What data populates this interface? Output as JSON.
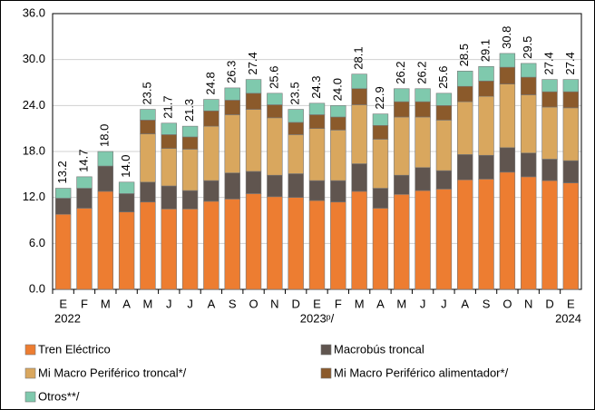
{
  "chart_data": {
    "type": "stacked-bar",
    "categories": [
      "E",
      "F",
      "M",
      "A",
      "M",
      "J",
      "J",
      "A",
      "S",
      "O",
      "N",
      "D",
      "E",
      "F",
      "M",
      "A",
      "M",
      "J",
      "J",
      "A",
      "S",
      "O",
      "N",
      "D",
      "E"
    ],
    "year_labels": [
      "2022",
      null,
      null,
      null,
      null,
      null,
      null,
      null,
      null,
      null,
      null,
      null,
      "2023ᵖ/",
      null,
      null,
      null,
      null,
      null,
      null,
      null,
      null,
      null,
      null,
      null,
      "2024"
    ],
    "total_labels": [
      "13.2",
      "14.7",
      "18.0",
      "14.0",
      "23.5",
      "21.7",
      "21.3",
      "24.8",
      "26.3",
      "27.4",
      "25.6",
      "23.5",
      "24.3",
      "24.0",
      "28.1",
      "22.9",
      "26.2",
      "26.2",
      "25.6",
      "28.5",
      "29.1",
      "30.8",
      "29.5",
      "27.4",
      "27.4"
    ],
    "series": [
      {
        "name": "Tren Eléctrico",
        "color": "#ed7d31",
        "values": [
          9.8,
          10.6,
          12.8,
          10.1,
          11.4,
          10.5,
          10.5,
          11.5,
          11.8,
          12.5,
          12.1,
          12.0,
          11.6,
          11.4,
          12.8,
          10.6,
          12.4,
          12.9,
          13.1,
          14.3,
          14.4,
          15.3,
          14.7,
          14.2,
          13.9
        ]
      },
      {
        "name": "Macrobús troncal",
        "color": "#60554f",
        "values": [
          2.1,
          2.6,
          3.3,
          2.4,
          2.6,
          3.0,
          2.4,
          2.7,
          3.4,
          2.9,
          2.8,
          3.1,
          2.6,
          2.8,
          3.6,
          2.6,
          2.5,
          3.0,
          2.4,
          3.3,
          3.1,
          3.2,
          3.1,
          2.8,
          2.9
        ]
      },
      {
        "name": "Mi Macro Periférico troncal*/",
        "color": "#d9a75e",
        "values": [
          0,
          0,
          0,
          0,
          6.3,
          4.9,
          5.4,
          7.1,
          7.6,
          8.1,
          7.5,
          5.1,
          6.8,
          6.6,
          7.7,
          6.4,
          7.6,
          6.6,
          6.6,
          6.9,
          7.7,
          8.3,
          7.6,
          6.8,
          6.9
        ]
      },
      {
        "name": "Mi Macro Periférico alimentador*/",
        "color": "#8b5a2b",
        "values": [
          0,
          0,
          0,
          0,
          1.8,
          1.8,
          1.6,
          2.0,
          1.9,
          2.1,
          1.7,
          1.6,
          1.8,
          1.7,
          2.1,
          1.8,
          2.0,
          2.0,
          1.9,
          2.0,
          2.0,
          2.2,
          2.3,
          2.0,
          2.1
        ]
      },
      {
        "name": "Otros**/",
        "color": "#7fc9ad",
        "values": [
          1.3,
          1.5,
          1.9,
          1.5,
          1.4,
          1.5,
          1.4,
          1.5,
          1.6,
          1.8,
          1.5,
          1.7,
          1.5,
          1.5,
          1.9,
          1.5,
          1.7,
          1.7,
          1.6,
          2.0,
          1.9,
          1.8,
          1.8,
          1.6,
          1.6
        ]
      }
    ],
    "ylim": [
      0,
      36
    ],
    "yticks": [
      {
        "value": 0,
        "label": "0.0"
      },
      {
        "value": 6,
        "label": "6.0"
      },
      {
        "value": 12,
        "label": "12.0"
      },
      {
        "value": 18,
        "label": "18.0"
      },
      {
        "value": 24,
        "label": "24.0"
      },
      {
        "value": 30,
        "label": "30.0"
      },
      {
        "value": 36,
        "label": "36.0"
      }
    ],
    "grid": true
  }
}
